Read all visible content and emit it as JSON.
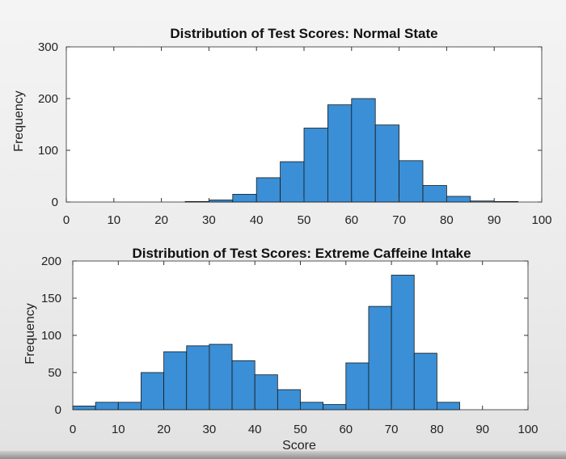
{
  "chart_data": [
    {
      "type": "bar",
      "title": "Distribution of Test Scores: Normal State",
      "xlabel": "",
      "ylabel": "Frequency",
      "xlim": [
        0,
        100
      ],
      "ylim": [
        0,
        300
      ],
      "xticks": [
        "0",
        "10",
        "20",
        "30",
        "40",
        "50",
        "60",
        "70",
        "80",
        "90",
        "100"
      ],
      "yticks": [
        "0",
        "100",
        "200",
        "300"
      ],
      "bin_width": 5,
      "bins": [
        {
          "start": 25,
          "value": 1
        },
        {
          "start": 30,
          "value": 4
        },
        {
          "start": 35,
          "value": 15
        },
        {
          "start": 40,
          "value": 47
        },
        {
          "start": 45,
          "value": 78
        },
        {
          "start": 50,
          "value": 143
        },
        {
          "start": 55,
          "value": 188
        },
        {
          "start": 60,
          "value": 200
        },
        {
          "start": 65,
          "value": 149
        },
        {
          "start": 70,
          "value": 80
        },
        {
          "start": 75,
          "value": 32
        },
        {
          "start": 80,
          "value": 11
        },
        {
          "start": 85,
          "value": 2
        },
        {
          "start": 90,
          "value": 1
        }
      ],
      "bar_color": "#3a8fd6"
    },
    {
      "type": "bar",
      "title": "Distribution of Test Scores: Extreme Caffeine Intake",
      "xlabel": "Score",
      "ylabel": "Frequency",
      "xlim": [
        0,
        100
      ],
      "ylim": [
        0,
        200
      ],
      "xticks": [
        "0",
        "10",
        "20",
        "30",
        "40",
        "50",
        "60",
        "70",
        "80",
        "90",
        "100"
      ],
      "yticks": [
        "0",
        "50",
        "100",
        "150",
        "200"
      ],
      "bin_width": 5,
      "bins": [
        {
          "start": 0,
          "value": 5
        },
        {
          "start": 5,
          "value": 10
        },
        {
          "start": 10,
          "value": 10
        },
        {
          "start": 15,
          "value": 50
        },
        {
          "start": 20,
          "value": 78
        },
        {
          "start": 25,
          "value": 86
        },
        {
          "start": 30,
          "value": 88
        },
        {
          "start": 35,
          "value": 66
        },
        {
          "start": 40,
          "value": 47
        },
        {
          "start": 45,
          "value": 27
        },
        {
          "start": 50,
          "value": 10
        },
        {
          "start": 55,
          "value": 7
        },
        {
          "start": 60,
          "value": 63
        },
        {
          "start": 65,
          "value": 139
        },
        {
          "start": 70,
          "value": 181
        },
        {
          "start": 75,
          "value": 76
        },
        {
          "start": 80,
          "value": 10
        }
      ],
      "bar_color": "#3a8fd6"
    }
  ]
}
